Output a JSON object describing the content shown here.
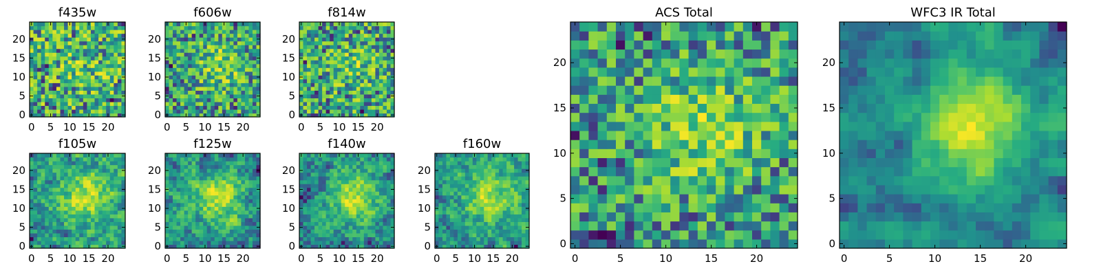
{
  "chart_data": [
    {
      "type": "heatmap",
      "title": "f435w",
      "grid": [
        25,
        25
      ],
      "seed": 11,
      "blob": 0.15,
      "smooth": 0,
      "xticks": [
        0,
        5,
        10,
        15,
        20
      ],
      "yticks": [
        0,
        5,
        10,
        15,
        20
      ],
      "xlim": [
        0,
        25
      ],
      "ylim": [
        0,
        25
      ],
      "colormap": "viridis",
      "colorbar": false
    },
    {
      "type": "heatmap",
      "title": "f606w",
      "grid": [
        25,
        25
      ],
      "seed": 23,
      "blob": 0.35,
      "smooth": 0,
      "xticks": [
        0,
        5,
        10,
        15,
        20
      ],
      "yticks": [
        0,
        5,
        10,
        15,
        20
      ],
      "xlim": [
        0,
        25
      ],
      "ylim": [
        0,
        25
      ],
      "colormap": "viridis",
      "colorbar": false
    },
    {
      "type": "heatmap",
      "title": "f814w",
      "grid": [
        25,
        25
      ],
      "seed": 37,
      "blob": 0.2,
      "smooth": 0,
      "xticks": [
        0,
        5,
        10,
        15,
        20
      ],
      "yticks": [
        0,
        5,
        10,
        15,
        20
      ],
      "xlim": [
        0,
        25
      ],
      "ylim": [
        0,
        25
      ],
      "colormap": "viridis",
      "colorbar": false
    },
    {
      "type": "heatmap",
      "title": "f105w",
      "grid": [
        25,
        25
      ],
      "seed": 41,
      "blob": 0.55,
      "smooth": 1,
      "xticks": [
        0,
        5,
        10,
        15,
        20
      ],
      "yticks": [
        0,
        5,
        10,
        15,
        20
      ],
      "xlim": [
        0,
        25
      ],
      "ylim": [
        0,
        25
      ],
      "colormap": "viridis",
      "colorbar": false
    },
    {
      "type": "heatmap",
      "title": "f125w",
      "grid": [
        25,
        25
      ],
      "seed": 53,
      "blob": 0.55,
      "smooth": 1,
      "xticks": [
        0,
        5,
        10,
        15,
        20
      ],
      "yticks": [
        0,
        5,
        10,
        15,
        20
      ],
      "xlim": [
        0,
        25
      ],
      "ylim": [
        0,
        25
      ],
      "colormap": "viridis",
      "colorbar": false
    },
    {
      "type": "heatmap",
      "title": "f140w",
      "grid": [
        25,
        25
      ],
      "seed": 67,
      "blob": 0.6,
      "smooth": 1,
      "xticks": [
        0,
        5,
        10,
        15,
        20
      ],
      "yticks": [
        0,
        5,
        10,
        15,
        20
      ],
      "xlim": [
        0,
        25
      ],
      "ylim": [
        0,
        25
      ],
      "colormap": "viridis",
      "colorbar": false
    },
    {
      "type": "heatmap",
      "title": "f160w",
      "grid": [
        25,
        25
      ],
      "seed": 79,
      "blob": 0.55,
      "smooth": 1,
      "xticks": [
        0,
        5,
        10,
        15,
        20
      ],
      "yticks": [
        0,
        5,
        10,
        15,
        20
      ],
      "xlim": [
        0,
        25
      ],
      "ylim": [
        0,
        25
      ],
      "colormap": "viridis",
      "colorbar": false
    },
    {
      "type": "heatmap",
      "title": "ACS Total",
      "grid": [
        25,
        25
      ],
      "seed": 97,
      "blob": 0.45,
      "smooth": 0,
      "xticks": [
        0,
        5,
        10,
        15,
        20
      ],
      "yticks": [
        0,
        5,
        10,
        15,
        20
      ],
      "xlim": [
        0,
        25
      ],
      "ylim": [
        0,
        25
      ],
      "colormap": "viridis",
      "colorbar": false
    },
    {
      "type": "heatmap",
      "title": "WFC3 IR Total",
      "grid": [
        25,
        25
      ],
      "seed": 103,
      "blob": 0.8,
      "smooth": 2,
      "xticks": [
        0,
        5,
        10,
        15,
        20
      ],
      "yticks": [
        0,
        5,
        10,
        15,
        20
      ],
      "xlim": [
        0,
        25
      ],
      "ylim": [
        0,
        25
      ],
      "colormap": "viridis",
      "colorbar": false
    }
  ],
  "colors": {
    "viridis_dark": "#440154",
    "viridis_mid": "#21918c",
    "viridis_bright": "#fde725"
  }
}
